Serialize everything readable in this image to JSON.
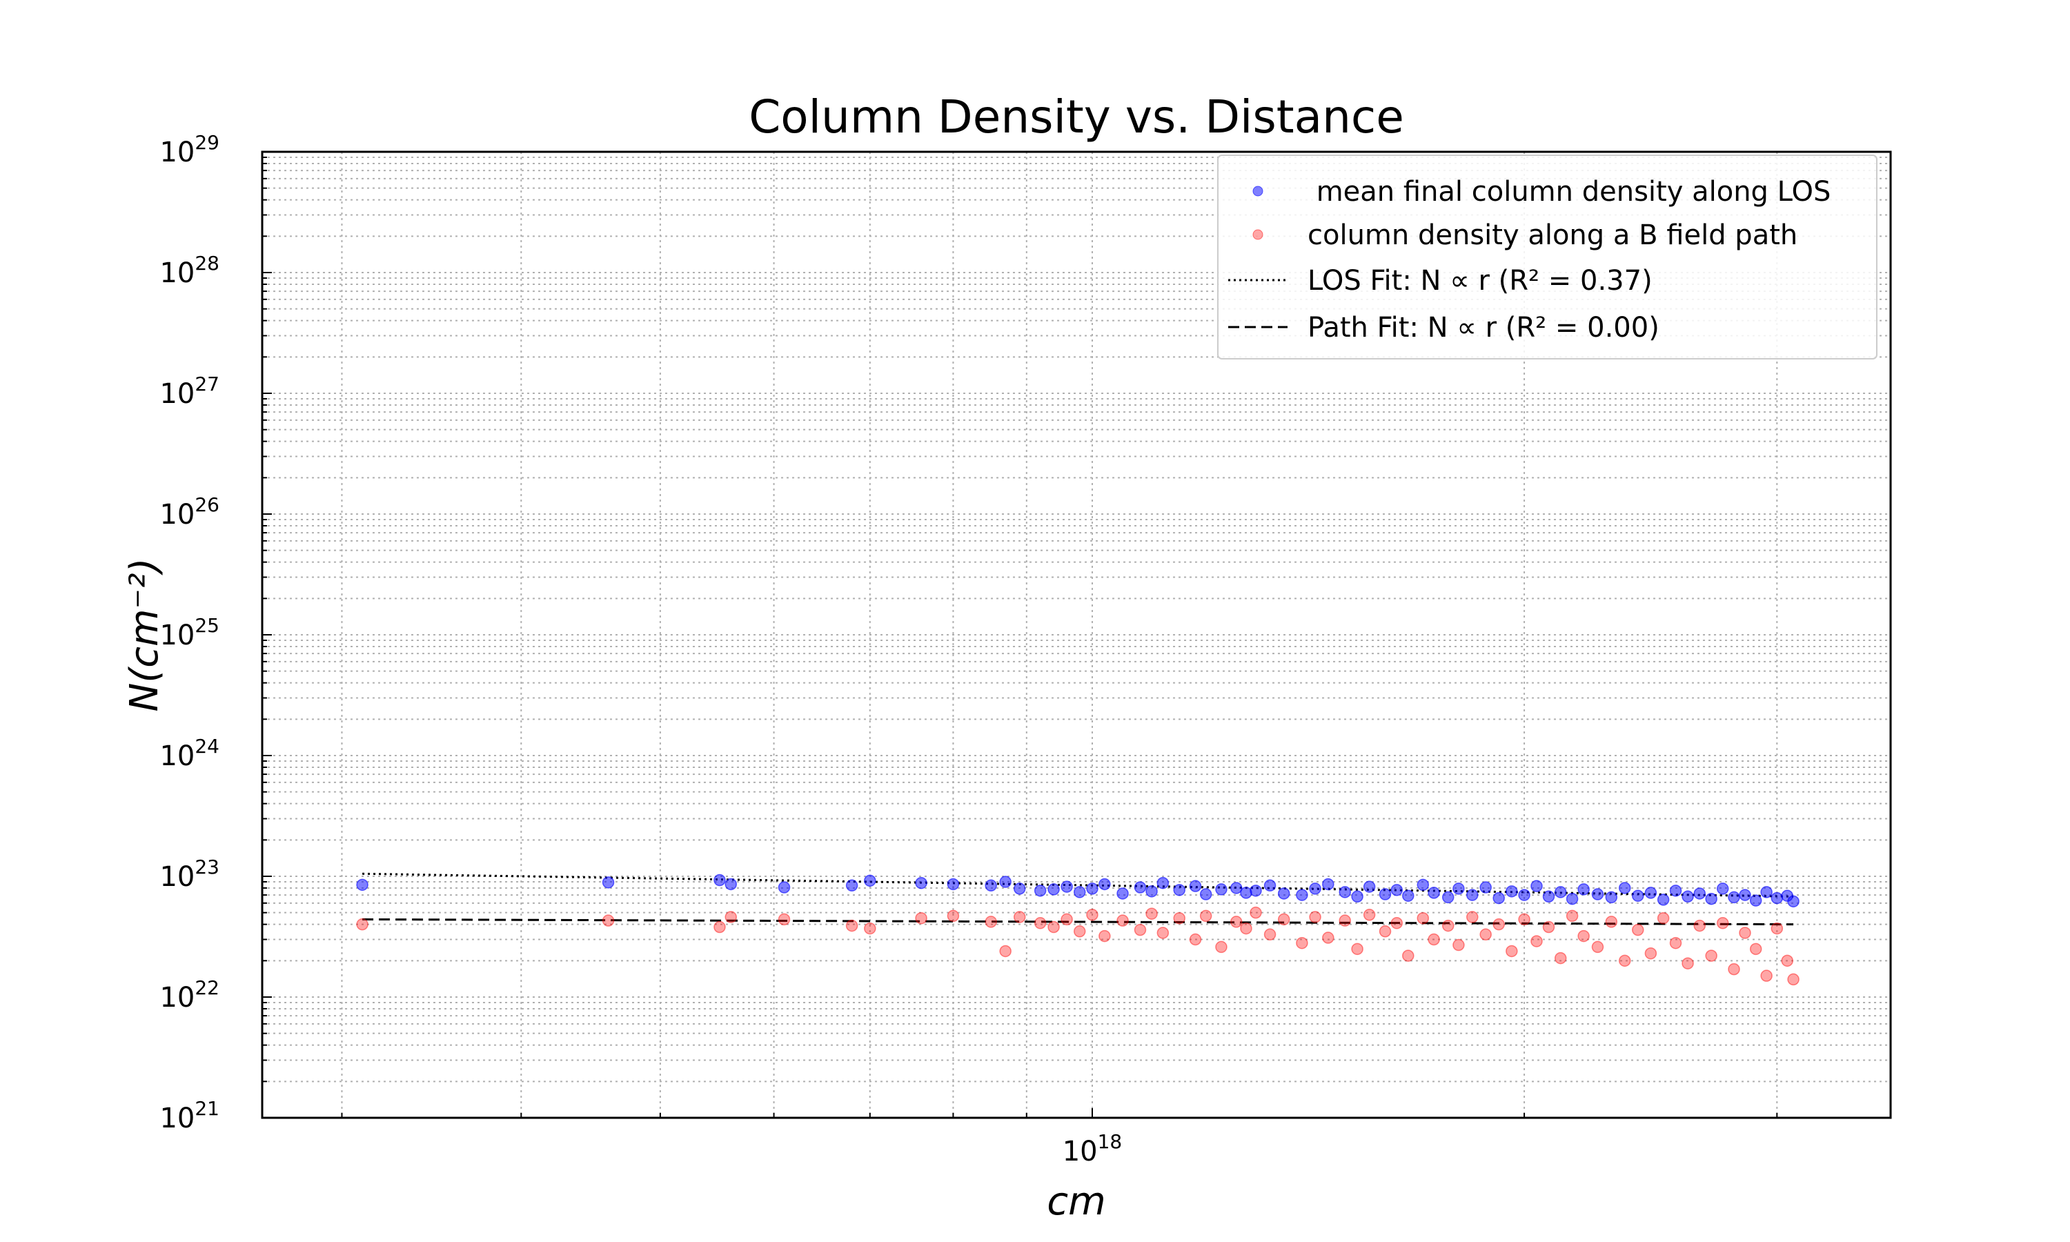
{
  "chart_data": {
    "type": "scatter",
    "title": "Column Density vs. Distance",
    "xlabel": "cm",
    "ylabel": "N(cm⁻²)",
    "x_scale": "log",
    "y_scale": "log",
    "xlim": [
      2.64e+17,
      3.6e+18
    ],
    "ylim": [
      1e+21,
      1e+29
    ],
    "x_ticks": [
      {
        "base": "10",
        "exp": "18",
        "value": 1e+18
      }
    ],
    "y_ticks": [
      {
        "base": "10",
        "exp": "21",
        "value": 1e+21
      },
      {
        "base": "10",
        "exp": "22",
        "value": 1e+22
      },
      {
        "base": "10",
        "exp": "23",
        "value": 1e+23
      },
      {
        "base": "10",
        "exp": "24",
        "value": 1e+24
      },
      {
        "base": "10",
        "exp": "25",
        "value": 1e+25
      },
      {
        "base": "10",
        "exp": "26",
        "value": 1e+26
      },
      {
        "base": "10",
        "exp": "27",
        "value": 1e+27
      },
      {
        "base": "10",
        "exp": "28",
        "value": 1e+28
      },
      {
        "base": "10",
        "exp": "29",
        "value": 1e+29
      }
    ],
    "grid": true,
    "legend_position": "top-right",
    "series": [
      {
        "name": " mean final column density along LOS",
        "kind": "scatter",
        "color": "#0000ff",
        "points": [
          [
            3.1e+17,
            8.5e+22
          ],
          [
            4.6e+17,
            8.9e+22
          ],
          [
            5.5e+17,
            9.3e+22
          ],
          [
            5.6e+17,
            8.6e+22
          ],
          [
            6.1e+17,
            8.1e+22
          ],
          [
            6.8e+17,
            8.4e+22
          ],
          [
            7e+17,
            9.2e+22
          ],
          [
            7.6e+17,
            8.8e+22
          ],
          [
            8e+17,
            8.6e+22
          ],
          [
            8.5e+17,
            8.4e+22
          ],
          [
            8.7e+17,
            9e+22
          ],
          [
            8.9e+17,
            7.9e+22
          ],
          [
            9.2e+17,
            7.6e+22
          ],
          [
            9.4e+17,
            7.8e+22
          ],
          [
            9.6e+17,
            8.2e+22
          ],
          [
            9.8e+17,
            7.4e+22
          ],
          [
            1e+18,
            7.9e+22
          ],
          [
            1.02e+18,
            8.6e+22
          ],
          [
            1.05e+18,
            7.2e+22
          ],
          [
            1.08e+18,
            8.1e+22
          ],
          [
            1.1e+18,
            7.5e+22
          ],
          [
            1.12e+18,
            8.8e+22
          ],
          [
            1.15e+18,
            7.7e+22
          ],
          [
            1.18e+18,
            8.3e+22
          ],
          [
            1.2e+18,
            7.1e+22
          ],
          [
            1.23e+18,
            7.8e+22
          ],
          [
            1.26e+18,
            8e+22
          ],
          [
            1.28e+18,
            7.3e+22
          ],
          [
            1.3e+18,
            7.6e+22
          ],
          [
            1.33e+18,
            8.4e+22
          ],
          [
            1.36e+18,
            7.2e+22
          ],
          [
            1.4e+18,
            7e+22
          ],
          [
            1.43e+18,
            7.9e+22
          ],
          [
            1.46e+18,
            8.6e+22
          ],
          [
            1.5e+18,
            7.4e+22
          ],
          [
            1.53e+18,
            6.8e+22
          ],
          [
            1.56e+18,
            8.2e+22
          ],
          [
            1.6e+18,
            7.1e+22
          ],
          [
            1.63e+18,
            7.7e+22
          ],
          [
            1.66e+18,
            6.9e+22
          ],
          [
            1.7e+18,
            8.5e+22
          ],
          [
            1.73e+18,
            7.3e+22
          ],
          [
            1.77e+18,
            6.7e+22
          ],
          [
            1.8e+18,
            7.9e+22
          ],
          [
            1.84e+18,
            7e+22
          ],
          [
            1.88e+18,
            8.1e+22
          ],
          [
            1.92e+18,
            6.6e+22
          ],
          [
            1.96e+18,
            7.5e+22
          ],
          [
            2e+18,
            7e+22
          ],
          [
            2.04e+18,
            8.3e+22
          ],
          [
            2.08e+18,
            6.8e+22
          ],
          [
            2.12e+18,
            7.4e+22
          ],
          [
            2.16e+18,
            6.5e+22
          ],
          [
            2.2e+18,
            7.8e+22
          ],
          [
            2.25e+18,
            7.1e+22
          ],
          [
            2.3e+18,
            6.7e+22
          ],
          [
            2.35e+18,
            8e+22
          ],
          [
            2.4e+18,
            6.9e+22
          ],
          [
            2.45e+18,
            7.3e+22
          ],
          [
            2.5e+18,
            6.4e+22
          ],
          [
            2.55e+18,
            7.6e+22
          ],
          [
            2.6e+18,
            6.8e+22
          ],
          [
            2.65e+18,
            7.2e+22
          ],
          [
            2.7e+18,
            6.5e+22
          ],
          [
            2.75e+18,
            7.9e+22
          ],
          [
            2.8e+18,
            6.7e+22
          ],
          [
            2.85e+18,
            7e+22
          ],
          [
            2.9e+18,
            6.3e+22
          ],
          [
            2.95e+18,
            7.4e+22
          ],
          [
            3e+18,
            6.6e+22
          ],
          [
            3.05e+18,
            6.9e+22
          ],
          [
            3.08e+18,
            6.2e+22
          ]
        ]
      },
      {
        "name": "column density along a B field path",
        "kind": "scatter",
        "color": "#ff0000",
        "points": [
          [
            3.1e+17,
            4e+22
          ],
          [
            4.6e+17,
            4.3e+22
          ],
          [
            5.5e+17,
            3.8e+22
          ],
          [
            5.6e+17,
            4.6e+22
          ],
          [
            6.1e+17,
            4.4e+22
          ],
          [
            6.8e+17,
            3.9e+22
          ],
          [
            7e+17,
            3.7e+22
          ],
          [
            7.6e+17,
            4.5e+22
          ],
          [
            8e+17,
            4.7e+22
          ],
          [
            8.5e+17,
            4.2e+22
          ],
          [
            8.7e+17,
            2.4e+22
          ],
          [
            8.9e+17,
            4.6e+22
          ],
          [
            9.2e+17,
            4.1e+22
          ],
          [
            9.4e+17,
            3.8e+22
          ],
          [
            9.6e+17,
            4.4e+22
          ],
          [
            9.8e+17,
            3.5e+22
          ],
          [
            1e+18,
            4.8e+22
          ],
          [
            1.02e+18,
            3.2e+22
          ],
          [
            1.05e+18,
            4.3e+22
          ],
          [
            1.08e+18,
            3.6e+22
          ],
          [
            1.1e+18,
            4.9e+22
          ],
          [
            1.12e+18,
            3.4e+22
          ],
          [
            1.15e+18,
            4.5e+22
          ],
          [
            1.18e+18,
            3e+22
          ],
          [
            1.2e+18,
            4.7e+22
          ],
          [
            1.23e+18,
            2.6e+22
          ],
          [
            1.26e+18,
            4.2e+22
          ],
          [
            1.28e+18,
            3.7e+22
          ],
          [
            1.3e+18,
            5e+22
          ],
          [
            1.33e+18,
            3.3e+22
          ],
          [
            1.36e+18,
            4.4e+22
          ],
          [
            1.4e+18,
            2.8e+22
          ],
          [
            1.43e+18,
            4.6e+22
          ],
          [
            1.46e+18,
            3.1e+22
          ],
          [
            1.5e+18,
            4.3e+22
          ],
          [
            1.53e+18,
            2.5e+22
          ],
          [
            1.56e+18,
            4.8e+22
          ],
          [
            1.6e+18,
            3.5e+22
          ],
          [
            1.63e+18,
            4.1e+22
          ],
          [
            1.66e+18,
            2.2e+22
          ],
          [
            1.7e+18,
            4.5e+22
          ],
          [
            1.73e+18,
            3e+22
          ],
          [
            1.77e+18,
            3.9e+22
          ],
          [
            1.8e+18,
            2.7e+22
          ],
          [
            1.84e+18,
            4.6e+22
          ],
          [
            1.88e+18,
            3.3e+22
          ],
          [
            1.92e+18,
            4e+22
          ],
          [
            1.96e+18,
            2.4e+22
          ],
          [
            2e+18,
            4.4e+22
          ],
          [
            2.04e+18,
            2.9e+22
          ],
          [
            2.08e+18,
            3.8e+22
          ],
          [
            2.12e+18,
            2.1e+22
          ],
          [
            2.16e+18,
            4.7e+22
          ],
          [
            2.2e+18,
            3.2e+22
          ],
          [
            2.25e+18,
            2.6e+22
          ],
          [
            2.3e+18,
            4.2e+22
          ],
          [
            2.35e+18,
            2e+22
          ],
          [
            2.4e+18,
            3.6e+22
          ],
          [
            2.45e+18,
            2.3e+22
          ],
          [
            2.5e+18,
            4.5e+22
          ],
          [
            2.55e+18,
            2.8e+22
          ],
          [
            2.6e+18,
            1.9e+22
          ],
          [
            2.65e+18,
            3.9e+22
          ],
          [
            2.7e+18,
            2.2e+22
          ],
          [
            2.75e+18,
            4.1e+22
          ],
          [
            2.8e+18,
            1.7e+22
          ],
          [
            2.85e+18,
            3.4e+22
          ],
          [
            2.9e+18,
            2.5e+22
          ],
          [
            2.95e+18,
            1.5e+22
          ],
          [
            3e+18,
            3.7e+22
          ],
          [
            3.05e+18,
            2e+22
          ],
          [
            3.08e+18,
            1.4e+22
          ]
        ]
      },
      {
        "name": "LOS Fit: N ∝ r (R² = 0.37)",
        "kind": "line",
        "linestyle": "dotted",
        "color": "#000000",
        "points": [
          [
            3.1e+17,
            1.05e+23
          ],
          [
            3.08e+18,
            6.8e+22
          ]
        ]
      },
      {
        "name": "Path Fit: N ∝ r (R² = 0.00)",
        "kind": "line",
        "linestyle": "dashed",
        "color": "#000000",
        "points": [
          [
            3.1e+17,
            4.4e+22
          ],
          [
            3.08e+18,
            4e+22
          ]
        ]
      }
    ]
  }
}
